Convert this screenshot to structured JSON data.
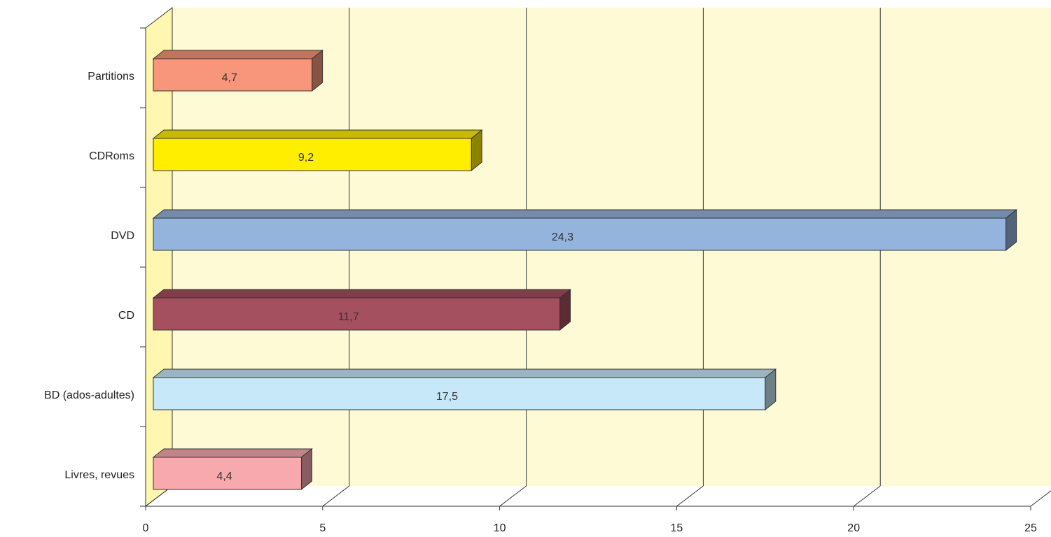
{
  "chart_data": {
    "type": "bar",
    "orientation": "horizontal",
    "three_d": true,
    "categories": [
      "Partitions",
      "CDRoms",
      "DVD",
      "CD",
      "BD (ados-adultes)",
      "Livres, revues"
    ],
    "values": [
      4.7,
      9.2,
      24.3,
      11.7,
      17.5,
      4.4
    ],
    "value_labels": [
      "4,7",
      "9,2",
      "24,3",
      "11,7",
      "17,5",
      "4,4"
    ],
    "colors": [
      "#F7967A",
      "#FFEE00",
      "#95B4DD",
      "#A5505F",
      "#C6E8F8",
      "#F7A9AE"
    ],
    "xlim": [
      0,
      25
    ],
    "xticks": [
      0,
      5,
      10,
      15,
      20,
      25
    ],
    "xtick_labels": [
      "0",
      "5",
      "10",
      "15",
      "20",
      "25"
    ],
    "title": "",
    "xlabel": "",
    "ylabel": "",
    "grid": "vertical",
    "legend": "none",
    "plot_background": "#FFFAD6",
    "wall_color": "#FFF7B0"
  }
}
